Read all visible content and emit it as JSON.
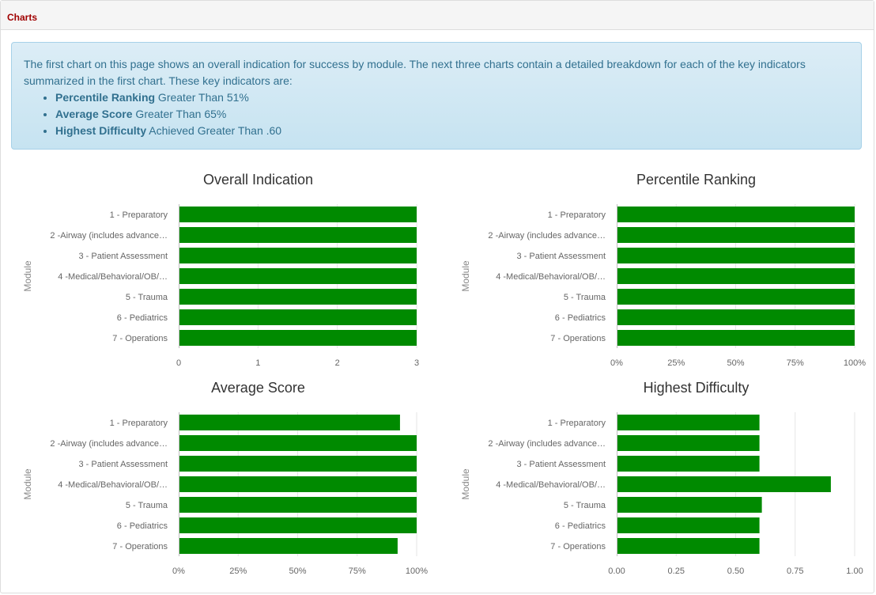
{
  "panel": {
    "title": "Charts"
  },
  "intro": {
    "text": "The first chart on this page shows an overall indication for success by module. The next three charts contain a detailed breakdown for each of the key indicators summarized in the first chart. These key indicators are:",
    "items": [
      {
        "bold": "Percentile Ranking",
        "rest": " Greater Than 51%"
      },
      {
        "bold": "Average Score",
        "rest": " Greater Than 65%"
      },
      {
        "bold": "Highest Difficulty",
        "rest": " Achieved Greater Than .60"
      }
    ]
  },
  "colors": {
    "bar": "#008a00",
    "grid": "#e6e6e6",
    "axis": "#c0c0c0"
  },
  "chart_data": [
    {
      "type": "bar",
      "orientation": "horizontal",
      "title": "Overall Indication",
      "ylabel": "Module",
      "xlabel": "",
      "categories": [
        "1 - Preparatory",
        "2 -Airway (includes advance…",
        "3 - Patient Assessment",
        "4 -Medical/Behavioral/OB/…",
        "5 - Trauma",
        "6 - Pediatrics",
        "7 - Operations"
      ],
      "values": [
        3,
        3,
        3,
        3,
        3,
        3,
        3
      ],
      "xlim": [
        0,
        3
      ],
      "ticks": [
        0,
        1,
        2,
        3
      ],
      "tick_labels": [
        "0",
        "1",
        "2",
        "3"
      ],
      "grid": true,
      "legend": "none"
    },
    {
      "type": "bar",
      "orientation": "horizontal",
      "title": "Percentile Ranking",
      "ylabel": "Module",
      "xlabel": "",
      "categories": [
        "1 - Preparatory",
        "2 -Airway (includes advance…",
        "3 - Patient Assessment",
        "4 -Medical/Behavioral/OB/…",
        "5 - Trauma",
        "6 - Pediatrics",
        "7 - Operations"
      ],
      "values": [
        1,
        1,
        1,
        1,
        1,
        1,
        1
      ],
      "xlim": [
        0,
        1
      ],
      "ticks": [
        0,
        0.25,
        0.5,
        0.75,
        1
      ],
      "tick_labels": [
        "0%",
        "25%",
        "50%",
        "75%",
        "100%"
      ],
      "grid": true,
      "legend": "none"
    },
    {
      "type": "bar",
      "orientation": "horizontal",
      "title": "Average Score",
      "ylabel": "Module",
      "xlabel": "",
      "categories": [
        "1 - Preparatory",
        "2 -Airway (includes advance…",
        "3 - Patient Assessment",
        "4 -Medical/Behavioral/OB/…",
        "5 - Trauma",
        "6 - Pediatrics",
        "7 - Operations"
      ],
      "values": [
        0.93,
        1,
        1,
        1,
        1,
        1,
        0.92
      ],
      "xlim": [
        0,
        1
      ],
      "ticks": [
        0,
        0.25,
        0.5,
        0.75,
        1
      ],
      "tick_labels": [
        "0%",
        "25%",
        "50%",
        "75%",
        "100%"
      ],
      "grid": true,
      "legend": "none"
    },
    {
      "type": "bar",
      "orientation": "horizontal",
      "title": "Highest Difficulty",
      "ylabel": "Module",
      "xlabel": "",
      "categories": [
        "1 - Preparatory",
        "2 -Airway (includes advance…",
        "3 - Patient Assessment",
        "4 -Medical/Behavioral/OB/…",
        "5 - Trauma",
        "6 - Pediatrics",
        "7 - Operations"
      ],
      "values": [
        0.6,
        0.6,
        0.6,
        0.9,
        0.61,
        0.6,
        0.6
      ],
      "xlim": [
        0,
        1
      ],
      "ticks": [
        0,
        0.25,
        0.5,
        0.75,
        1
      ],
      "tick_labels": [
        "0.00",
        "0.25",
        "0.50",
        "0.75",
        "1.00"
      ],
      "grid": true,
      "legend": "none"
    }
  ]
}
